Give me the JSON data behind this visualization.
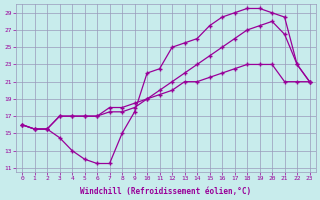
{
  "xlabel": "Windchill (Refroidissement éolien,°C)",
  "background_color": "#c8ecec",
  "grid_color": "#9999bb",
  "line_color": "#990099",
  "marker": "+",
  "xlim": [
    -0.5,
    23.5
  ],
  "ylim": [
    10.5,
    30
  ],
  "yticks": [
    11,
    13,
    15,
    17,
    19,
    21,
    23,
    25,
    27,
    29
  ],
  "xticks": [
    0,
    1,
    2,
    3,
    4,
    5,
    6,
    7,
    8,
    9,
    10,
    11,
    12,
    13,
    14,
    15,
    16,
    17,
    18,
    19,
    20,
    21,
    22,
    23
  ],
  "line1_x": [
    0,
    1,
    2,
    3,
    4,
    5,
    6,
    7,
    8,
    9,
    10,
    11,
    12,
    13,
    14,
    15,
    16,
    17,
    18,
    19,
    20,
    21,
    22,
    23
  ],
  "line1_y": [
    16,
    15.5,
    15.5,
    17,
    17,
    17,
    17,
    18,
    18,
    18.5,
    19,
    19.5,
    20,
    21,
    21,
    21.5,
    22,
    22.5,
    23,
    23,
    23,
    21,
    21,
    21
  ],
  "line2_x": [
    0,
    1,
    2,
    3,
    4,
    5,
    6,
    7,
    8,
    9,
    10,
    11,
    12,
    13,
    14,
    15,
    16,
    17,
    18,
    19,
    20,
    21,
    22,
    23
  ],
  "line2_y": [
    16,
    15.5,
    15.5,
    14.5,
    13,
    12,
    11.5,
    11.5,
    15,
    17.5,
    22,
    22.5,
    25,
    25.5,
    26,
    27.5,
    28.5,
    29,
    29.5,
    29.5,
    29,
    28.5,
    23,
    21
  ],
  "line3_x": [
    0,
    1,
    2,
    3,
    4,
    5,
    6,
    7,
    8,
    9,
    10,
    11,
    12,
    13,
    14,
    15,
    16,
    17,
    18,
    19,
    20,
    21,
    22,
    23
  ],
  "line3_y": [
    16,
    15.5,
    15.5,
    17,
    17,
    17,
    17,
    17.5,
    17.5,
    18,
    19,
    20,
    21,
    22,
    23,
    24,
    25,
    26,
    27,
    27.5,
    28,
    26.5,
    23,
    21
  ],
  "font_color": "#990099"
}
